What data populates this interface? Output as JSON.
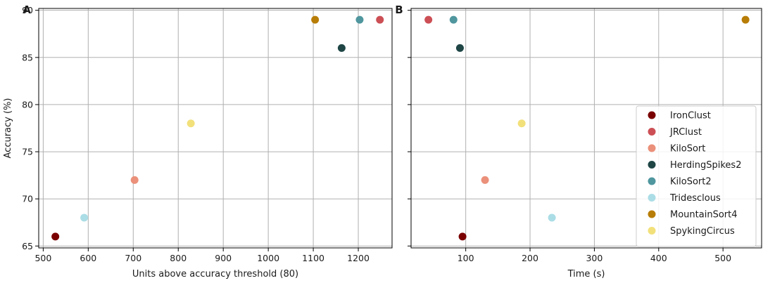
{
  "chart_data": [
    {
      "type": "scatter",
      "panel_label": "A",
      "xlabel": "Units above accuracy threshold (80)",
      "ylabel": "Accuracy (%)",
      "xlim": [
        490,
        1275
      ],
      "ylim": [
        64.8,
        90.2
      ],
      "xticks": [
        500,
        600,
        700,
        800,
        900,
        1000,
        1100,
        1200
      ],
      "yticks": [
        65,
        70,
        75,
        80,
        85,
        90
      ],
      "grid": true,
      "series": [
        {
          "name": "IronClust",
          "color": "#7a0000",
          "x": [
            527
          ],
          "y": [
            66
          ]
        },
        {
          "name": "JRClust",
          "color": "#cc4f55",
          "x": [
            1248
          ],
          "y": [
            89
          ]
        },
        {
          "name": "KiloSort",
          "color": "#eb907a",
          "x": [
            703
          ],
          "y": [
            72
          ]
        },
        {
          "name": "HerdingSpikes2",
          "color": "#1f4545",
          "x": [
            1163
          ],
          "y": [
            86
          ]
        },
        {
          "name": "KiloSort2",
          "color": "#4f969e",
          "x": [
            1203
          ],
          "y": [
            89
          ]
        },
        {
          "name": "Tridesclous",
          "color": "#abdde6",
          "x": [
            591
          ],
          "y": [
            68
          ]
        },
        {
          "name": "MountainSort4",
          "color": "#b87d06",
          "x": [
            1104
          ],
          "y": [
            89
          ]
        },
        {
          "name": "SpykingCircus",
          "color": "#f2e07a",
          "x": [
            828
          ],
          "y": [
            78
          ]
        }
      ]
    },
    {
      "type": "scatter",
      "panel_label": "B",
      "xlabel": "Time (s)",
      "ylabel": "",
      "xlim": [
        15,
        560
      ],
      "ylim": [
        64.8,
        90.2
      ],
      "xticks": [
        100,
        200,
        300,
        400,
        500
      ],
      "yticks": [
        65,
        70,
        75,
        80,
        85,
        90
      ],
      "grid": true,
      "legend": "bottom-right",
      "series": [
        {
          "name": "IronClust",
          "color": "#7a0000",
          "x": [
            95
          ],
          "y": [
            66
          ]
        },
        {
          "name": "JRClust",
          "color": "#cc4f55",
          "x": [
            42
          ],
          "y": [
            89
          ]
        },
        {
          "name": "KiloSort",
          "color": "#eb907a",
          "x": [
            130
          ],
          "y": [
            72
          ]
        },
        {
          "name": "HerdingSpikes2",
          "color": "#1f4545",
          "x": [
            91
          ],
          "y": [
            86
          ]
        },
        {
          "name": "KiloSort2",
          "color": "#4f969e",
          "x": [
            81
          ],
          "y": [
            89
          ]
        },
        {
          "name": "Tridesclous",
          "color": "#abdde6",
          "x": [
            234
          ],
          "y": [
            68
          ]
        },
        {
          "name": "MountainSort4",
          "color": "#b87d06",
          "x": [
            535
          ],
          "y": [
            89
          ]
        },
        {
          "name": "SpykingCircus",
          "color": "#f2e07a",
          "x": [
            187
          ],
          "y": [
            78
          ]
        }
      ]
    }
  ]
}
